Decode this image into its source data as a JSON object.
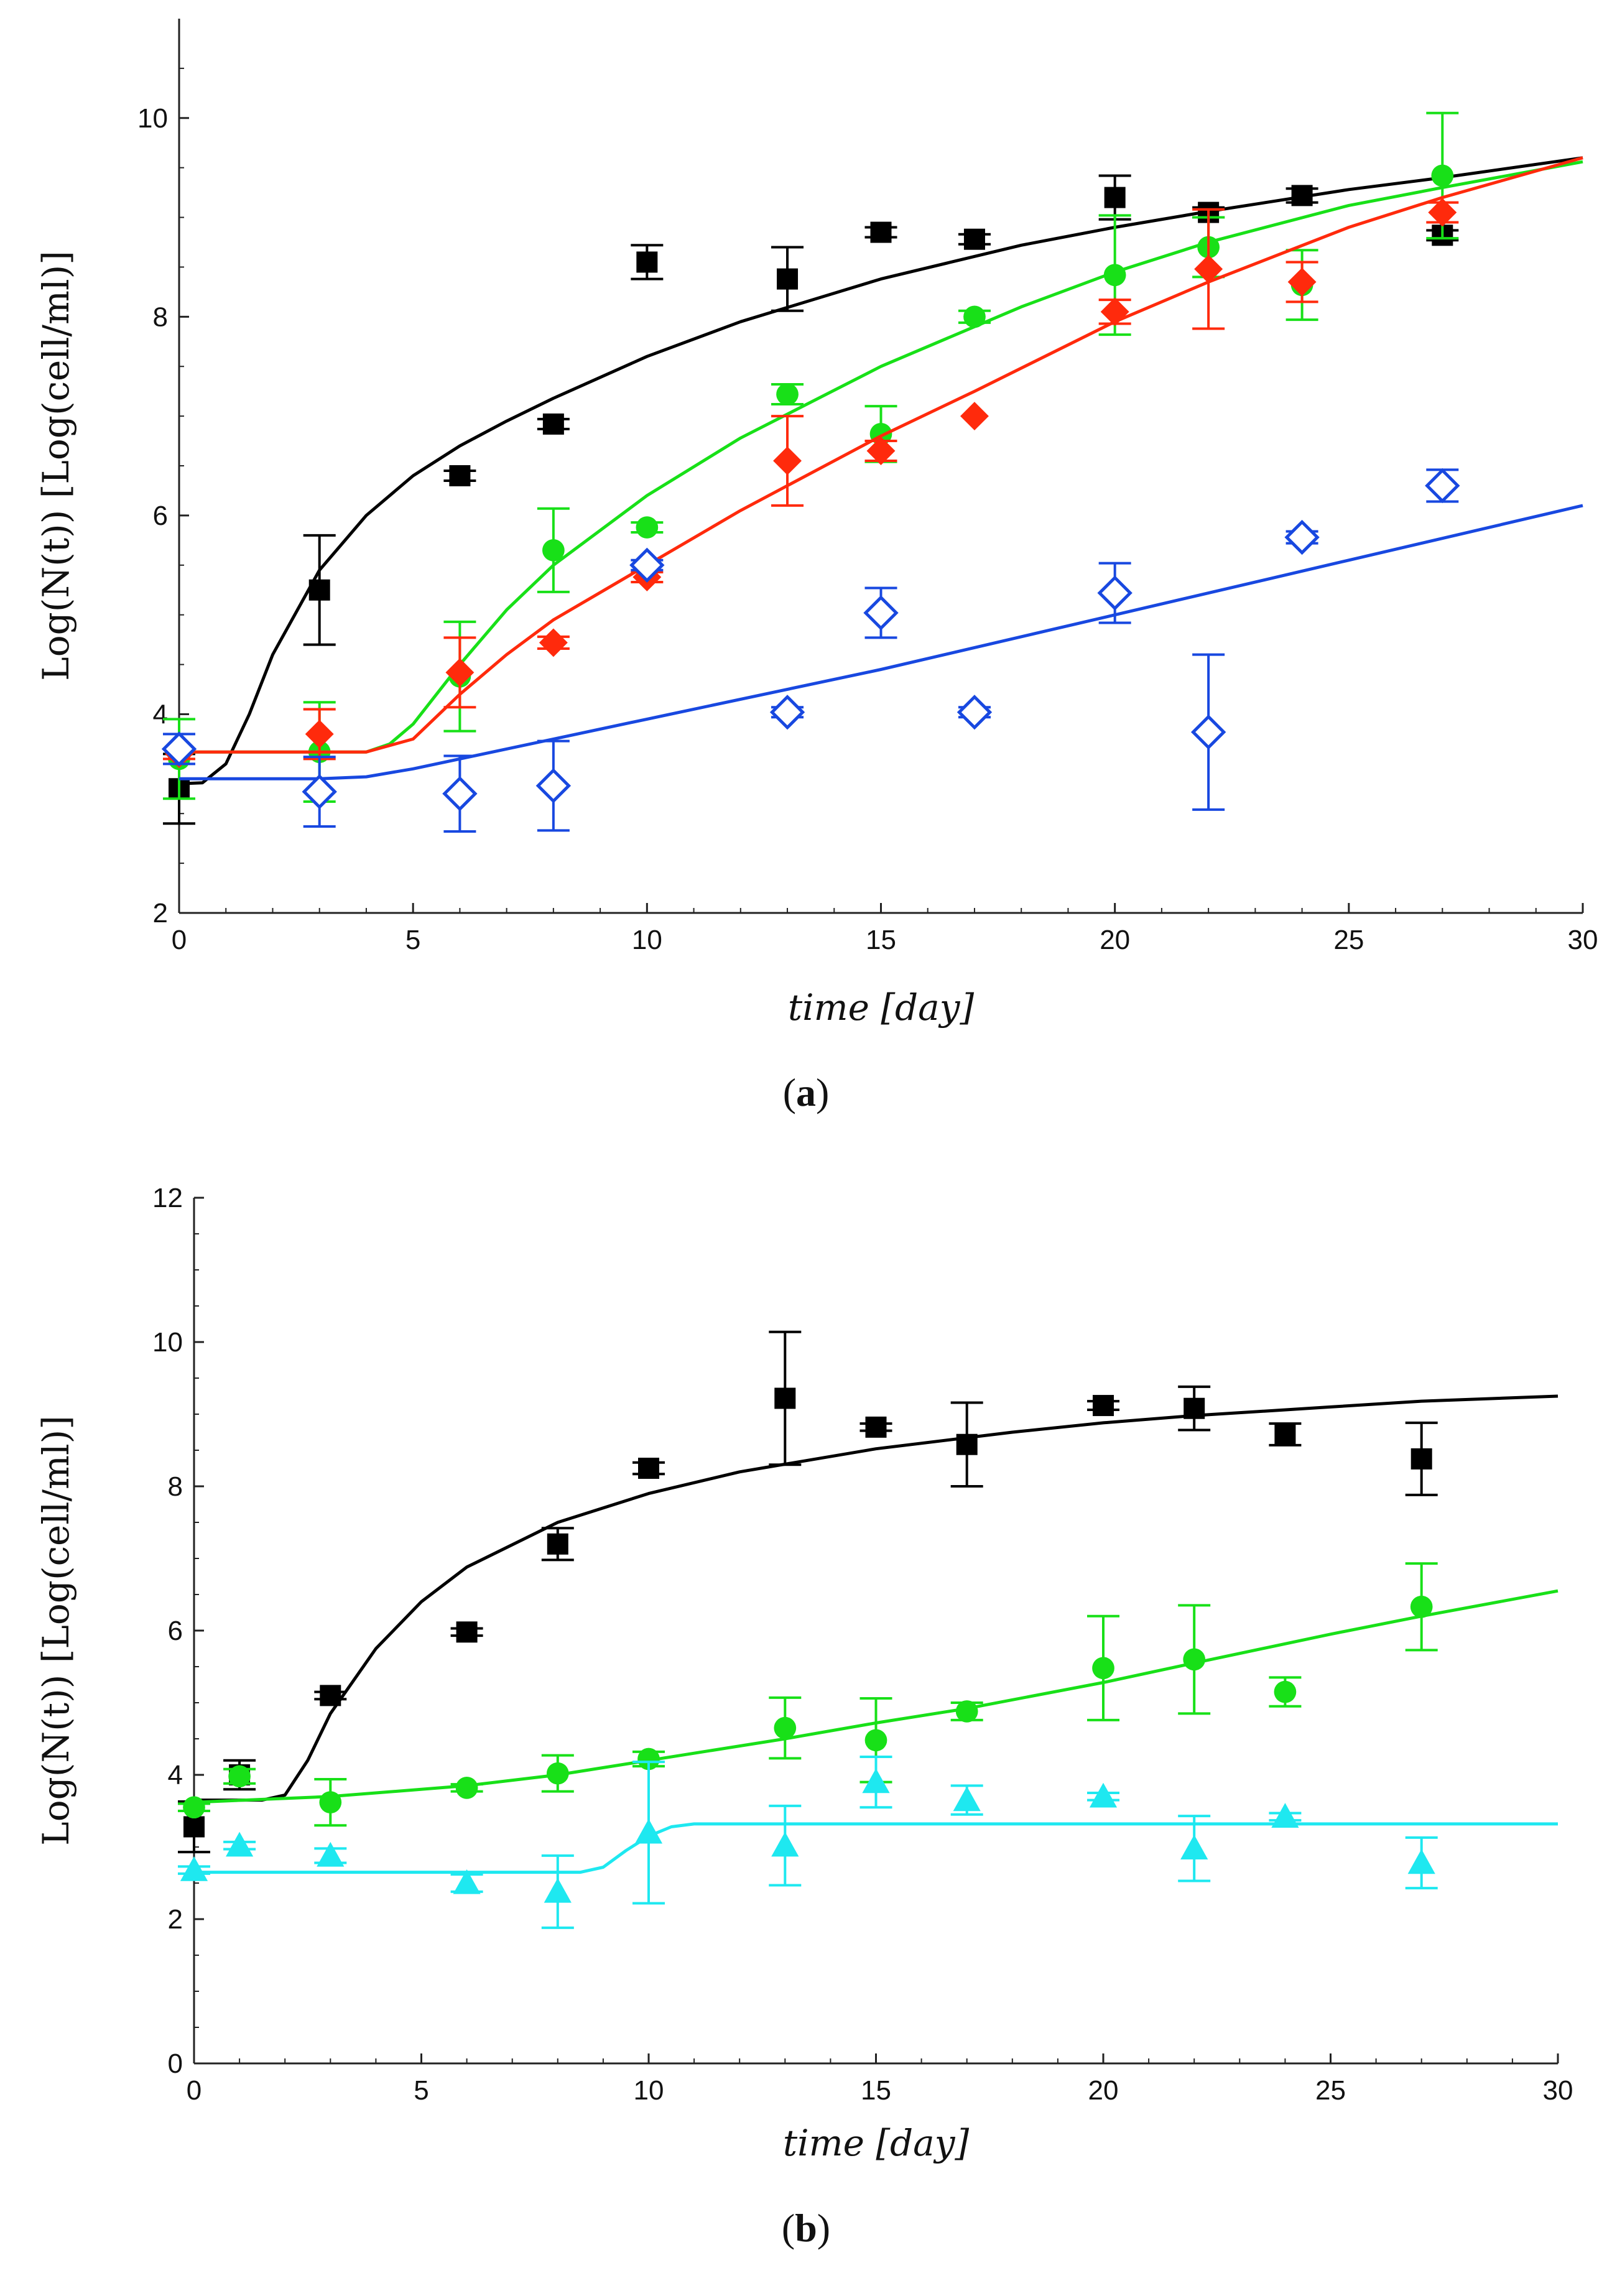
{
  "chart_data": [
    {
      "type": "scatter",
      "panel_label": "a",
      "xlabel": "time [day]",
      "ylabel": "Log(N(t)) [Log(cell/ml)]",
      "xlim": [
        0,
        30
      ],
      "ylim": [
        2,
        11
      ],
      "x_ticks": [
        "0",
        "5",
        "10",
        "15",
        "20",
        "25",
        "30"
      ],
      "y_ticks": [
        "2",
        "4",
        "6",
        "8",
        "10"
      ],
      "grid": false,
      "legend": "none",
      "series": [
        {
          "color": "#000000",
          "marker": "square-filled",
          "points": [
            [
              0,
              3.25,
              0.35
            ],
            [
              3,
              5.25,
              0.55
            ],
            [
              6,
              6.4,
              0.05
            ],
            [
              8,
              6.92,
              0.05
            ],
            [
              10,
              8.55,
              0.17
            ],
            [
              13,
              8.38,
              0.32
            ],
            [
              15,
              8.85,
              0.05
            ],
            [
              17,
              8.78,
              0.05
            ],
            [
              20,
              9.2,
              0.22
            ],
            [
              22,
              9.05,
              0.05
            ],
            [
              24,
              9.22,
              0.07
            ],
            [
              27,
              8.82,
              0.05
            ]
          ],
          "fit": [
            [
              0,
              3.3
            ],
            [
              0.5,
              3.31
            ],
            [
              1,
              3.5
            ],
            [
              1.5,
              4.0
            ],
            [
              2,
              4.6
            ],
            [
              3,
              5.45
            ],
            [
              4,
              6.0
            ],
            [
              5,
              6.4
            ],
            [
              6,
              6.7
            ],
            [
              7,
              6.95
            ],
            [
              8,
              7.18
            ],
            [
              10,
              7.6
            ],
            [
              12,
              7.95
            ],
            [
              15,
              8.38
            ],
            [
              18,
              8.72
            ],
            [
              20,
              8.9
            ],
            [
              22,
              9.06
            ],
            [
              25,
              9.28
            ],
            [
              27,
              9.4
            ],
            [
              30,
              9.6
            ]
          ]
        },
        {
          "color": "#18e018",
          "marker": "circle-filled",
          "points": [
            [
              0,
              3.55,
              0.4
            ],
            [
              3,
              3.62,
              0.5
            ],
            [
              6,
              4.38,
              0.55
            ],
            [
              8,
              5.65,
              0.42
            ],
            [
              10,
              5.88,
              0.05
            ],
            [
              13,
              7.22,
              0.1
            ],
            [
              15,
              6.82,
              0.28
            ],
            [
              17,
              8.0,
              0.06
            ],
            [
              20,
              8.42,
              0.6
            ],
            [
              22,
              8.7,
              0.3
            ],
            [
              24,
              8.32,
              0.35
            ],
            [
              27,
              9.42,
              0.63
            ]
          ],
          "fit": [
            [
              0,
              3.62
            ],
            [
              3,
              3.62
            ],
            [
              4,
              3.62
            ],
            [
              4.5,
              3.7
            ],
            [
              5,
              3.9
            ],
            [
              6,
              4.5
            ],
            [
              7,
              5.05
            ],
            [
              8,
              5.5
            ],
            [
              10,
              6.2
            ],
            [
              12,
              6.78
            ],
            [
              15,
              7.5
            ],
            [
              18,
              8.1
            ],
            [
              20,
              8.45
            ],
            [
              22,
              8.75
            ],
            [
              25,
              9.12
            ],
            [
              27,
              9.3
            ],
            [
              30,
              9.56
            ]
          ]
        },
        {
          "color": "#ff2a0c",
          "marker": "diamond-filled",
          "points": [
            [
              0,
              3.6,
              0.05
            ],
            [
              3,
              3.8,
              0.25
            ],
            [
              6,
              4.42,
              0.35
            ],
            [
              8,
              4.72,
              0.06
            ],
            [
              10,
              5.38,
              0.05
            ],
            [
              13,
              6.55,
              0.45
            ],
            [
              15,
              6.65,
              0.1
            ],
            [
              17,
              7.0,
              0.04
            ],
            [
              20,
              8.05,
              0.12
            ],
            [
              22,
              8.48,
              0.6
            ],
            [
              24,
              8.35,
              0.2
            ],
            [
              27,
              9.05,
              0.1
            ]
          ],
          "fit": [
            [
              0,
              3.62
            ],
            [
              3,
              3.62
            ],
            [
              4,
              3.62
            ],
            [
              5,
              3.75
            ],
            [
              6,
              4.2
            ],
            [
              7,
              4.6
            ],
            [
              8,
              4.95
            ],
            [
              10,
              5.5
            ],
            [
              12,
              6.05
            ],
            [
              15,
              6.8
            ],
            [
              17,
              7.25
            ],
            [
              20,
              7.95
            ],
            [
              22,
              8.35
            ],
            [
              25,
              8.9
            ],
            [
              27,
              9.2
            ],
            [
              30,
              9.6
            ]
          ]
        },
        {
          "color": "#1848e0",
          "marker": "diamond-open",
          "points": [
            [
              0,
              3.65,
              0.15
            ],
            [
              3,
              3.22,
              0.35
            ],
            [
              6,
              3.2,
              0.38
            ],
            [
              8,
              3.28,
              0.45
            ],
            [
              10,
              5.5,
              0.05
            ],
            [
              13,
              4.02,
              0.05
            ],
            [
              15,
              5.02,
              0.25
            ],
            [
              17,
              4.02,
              0.05
            ],
            [
              20,
              5.22,
              0.3
            ],
            [
              22,
              3.82,
              0.78
            ],
            [
              24,
              5.78,
              0.06
            ],
            [
              27,
              6.3,
              0.16
            ]
          ],
          "fit": [
            [
              0,
              3.35
            ],
            [
              3,
              3.35
            ],
            [
              4,
              3.37
            ],
            [
              5,
              3.45
            ],
            [
              8,
              3.75
            ],
            [
              10,
              3.95
            ],
            [
              15,
              4.45
            ],
            [
              20,
              5.0
            ],
            [
              25,
              5.55
            ],
            [
              30,
              6.1
            ]
          ]
        }
      ]
    },
    {
      "type": "scatter",
      "panel_label": "b",
      "xlabel": "time [day]",
      "ylabel": "Log(N(t)) [Log(cell/ml)]",
      "xlim": [
        0,
        30
      ],
      "ylim": [
        0,
        12
      ],
      "x_ticks": [
        "0",
        "5",
        "10",
        "15",
        "20",
        "25",
        "30"
      ],
      "y_ticks": [
        "0",
        "2",
        "4",
        "6",
        "8",
        "10",
        "12"
      ],
      "grid": false,
      "legend": "none",
      "series": [
        {
          "color": "#000000",
          "marker": "square-filled",
          "points": [
            [
              0,
              3.28,
              0.35
            ],
            [
              1,
              4.0,
              0.2
            ],
            [
              3,
              5.1,
              0.05
            ],
            [
              6,
              5.98,
              0.05
            ],
            [
              8,
              7.2,
              0.22
            ],
            [
              10,
              8.25,
              0.08
            ],
            [
              13,
              9.22,
              0.92
            ],
            [
              15,
              8.82,
              0.05
            ],
            [
              17,
              8.58,
              0.58
            ],
            [
              20,
              9.12,
              0.06
            ],
            [
              22,
              9.08,
              0.3
            ],
            [
              24,
              8.72,
              0.15
            ],
            [
              27,
              8.38,
              0.5
            ]
          ],
          "fit": [
            [
              0,
              3.65
            ],
            [
              1.5,
              3.65
            ],
            [
              2,
              3.72
            ],
            [
              2.5,
              4.2
            ],
            [
              3,
              4.85
            ],
            [
              4,
              5.75
            ],
            [
              5,
              6.4
            ],
            [
              6,
              6.88
            ],
            [
              8,
              7.5
            ],
            [
              10,
              7.9
            ],
            [
              12,
              8.2
            ],
            [
              15,
              8.52
            ],
            [
              18,
              8.75
            ],
            [
              20,
              8.88
            ],
            [
              22,
              8.98
            ],
            [
              25,
              9.1
            ],
            [
              27,
              9.18
            ],
            [
              30,
              9.25
            ]
          ]
        },
        {
          "color": "#18e018",
          "marker": "circle-filled",
          "points": [
            [
              0,
              3.55,
              0.05
            ],
            [
              1,
              3.98,
              0.1
            ],
            [
              3,
              3.62,
              0.32
            ],
            [
              6,
              3.82,
              0.05
            ],
            [
              8,
              4.02,
              0.25
            ],
            [
              10,
              4.22,
              0.1
            ],
            [
              13,
              4.65,
              0.42
            ],
            [
              15,
              4.48,
              0.58
            ],
            [
              17,
              4.88,
              0.12
            ],
            [
              20,
              5.48,
              0.72
            ],
            [
              22,
              5.6,
              0.75
            ],
            [
              24,
              5.15,
              0.2
            ],
            [
              27,
              6.33,
              0.6
            ]
          ],
          "fit": [
            [
              0,
              3.62
            ],
            [
              3,
              3.7
            ],
            [
              6,
              3.85
            ],
            [
              8,
              4.0
            ],
            [
              10,
              4.2
            ],
            [
              13,
              4.5
            ],
            [
              15,
              4.72
            ],
            [
              17,
              4.92
            ],
            [
              20,
              5.28
            ],
            [
              22,
              5.55
            ],
            [
              25,
              5.95
            ],
            [
              27,
              6.2
            ],
            [
              30,
              6.55
            ]
          ]
        },
        {
          "color": "#1ee8f0",
          "marker": "triangle-filled",
          "points": [
            [
              0,
              2.68,
              0.05
            ],
            [
              1,
              3.02,
              0.05
            ],
            [
              3,
              2.88,
              0.1
            ],
            [
              6,
              2.5,
              0.12
            ],
            [
              8,
              2.38,
              0.5
            ],
            [
              10,
              3.2,
              0.98
            ],
            [
              13,
              3.02,
              0.55
            ],
            [
              15,
              3.9,
              0.35
            ],
            [
              17,
              3.65,
              0.2
            ],
            [
              20,
              3.7,
              0.05
            ],
            [
              22,
              2.98,
              0.45
            ],
            [
              24,
              3.42,
              0.05
            ],
            [
              27,
              2.78,
              0.35
            ]
          ],
          "fit": [
            [
              0,
              2.65
            ],
            [
              8.5,
              2.65
            ],
            [
              9,
              2.72
            ],
            [
              9.5,
              2.95
            ],
            [
              10,
              3.15
            ],
            [
              10.5,
              3.28
            ],
            [
              11,
              3.32
            ],
            [
              30,
              3.32
            ]
          ]
        }
      ]
    }
  ]
}
